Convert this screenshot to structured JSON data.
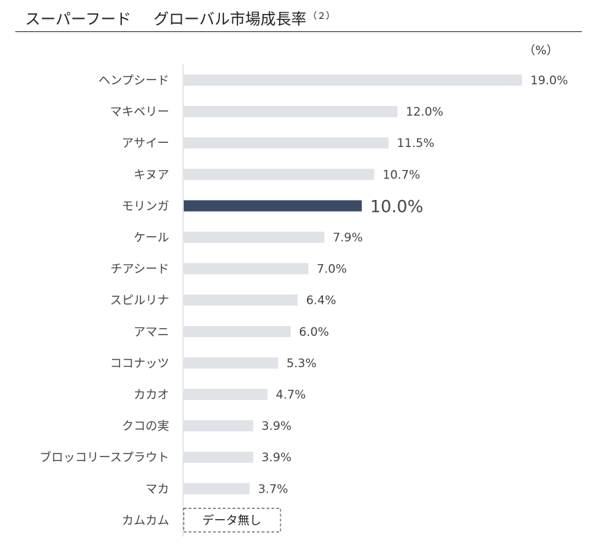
{
  "header": {
    "title_main": "スーパーフード",
    "title_sub": "グローバル市場成長率",
    "note_ref": "（２）"
  },
  "unit_label": "（%）",
  "colors": {
    "default_bar": "#dfe2e7",
    "highlight_bar": "#3a4b66",
    "text": "#444444",
    "axis": "#cccccc"
  },
  "chart_data": {
    "type": "bar",
    "orientation": "horizontal",
    "categories": [
      "ヘンプシード",
      "マキベリー",
      "アサイー",
      "キヌア",
      "モリンガ",
      "ケール",
      "チアシード",
      "スピルリナ",
      "アマニ",
      "ココナッツ",
      "カカオ",
      "クコの実",
      "ブロッコリースプラウト",
      "マカ",
      "カムカム"
    ],
    "values": [
      19.0,
      12.0,
      11.5,
      10.7,
      10.0,
      7.9,
      7.0,
      6.4,
      6.0,
      5.3,
      4.7,
      3.9,
      3.9,
      3.7,
      null
    ],
    "value_labels": [
      "19.0%",
      "12.0%",
      "11.5%",
      "10.7%",
      "10.0%",
      "7.9%",
      "7.0%",
      "6.4%",
      "6.0%",
      "5.3%",
      "4.7%",
      "3.9%",
      "3.9%",
      "3.7%",
      ""
    ],
    "highlight_category": "モリンガ",
    "no_data_label": "データ無し",
    "xlim": [
      0,
      19.0
    ]
  }
}
